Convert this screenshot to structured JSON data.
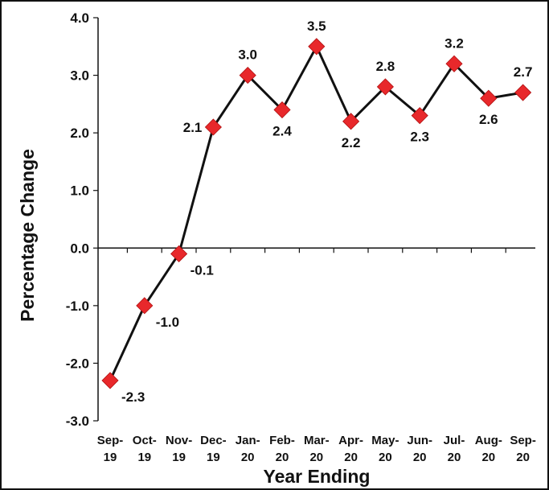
{
  "chart_data": {
    "type": "line",
    "title": "",
    "xlabel": "Year Ending",
    "ylabel": "Percentage Change",
    "ylim": [
      -3.0,
      4.0
    ],
    "yticks": [
      "4.0",
      "3.0",
      "2.0",
      "1.0",
      "0.0",
      "-1.0",
      "-2.0",
      "-3.0"
    ],
    "categories": [
      [
        "Sep-",
        "19"
      ],
      [
        "Oct-",
        "19"
      ],
      [
        "Nov-",
        "19"
      ],
      [
        "Dec-",
        "19"
      ],
      [
        "Jan-",
        "20"
      ],
      [
        "Feb-",
        "20"
      ],
      [
        "Mar-",
        "20"
      ],
      [
        "Apr-",
        "20"
      ],
      [
        "May-",
        "20"
      ],
      [
        "Jun-",
        "20"
      ],
      [
        "Jul-",
        "20"
      ],
      [
        "Aug-",
        "20"
      ],
      [
        "Sep-",
        "20"
      ]
    ],
    "values": [
      -2.3,
      -1.0,
      -0.1,
      2.1,
      3.0,
      2.4,
      3.5,
      2.2,
      2.8,
      2.3,
      3.2,
      2.6,
      2.7
    ],
    "value_labels": [
      "-2.3",
      "-1.0",
      "-0.1",
      "2.1",
      "3.0",
      "2.4",
      "3.5",
      "2.2",
      "2.8",
      "2.3",
      "3.2",
      "2.6",
      "2.7"
    ],
    "label_positions": [
      "below-right",
      "below-right",
      "below-right",
      "left",
      "above",
      "below",
      "above",
      "below",
      "above",
      "below",
      "above",
      "below",
      "above"
    ],
    "grid": false,
    "line_color": "#111111",
    "marker_color": "#e8282b",
    "marker": "diamond"
  }
}
